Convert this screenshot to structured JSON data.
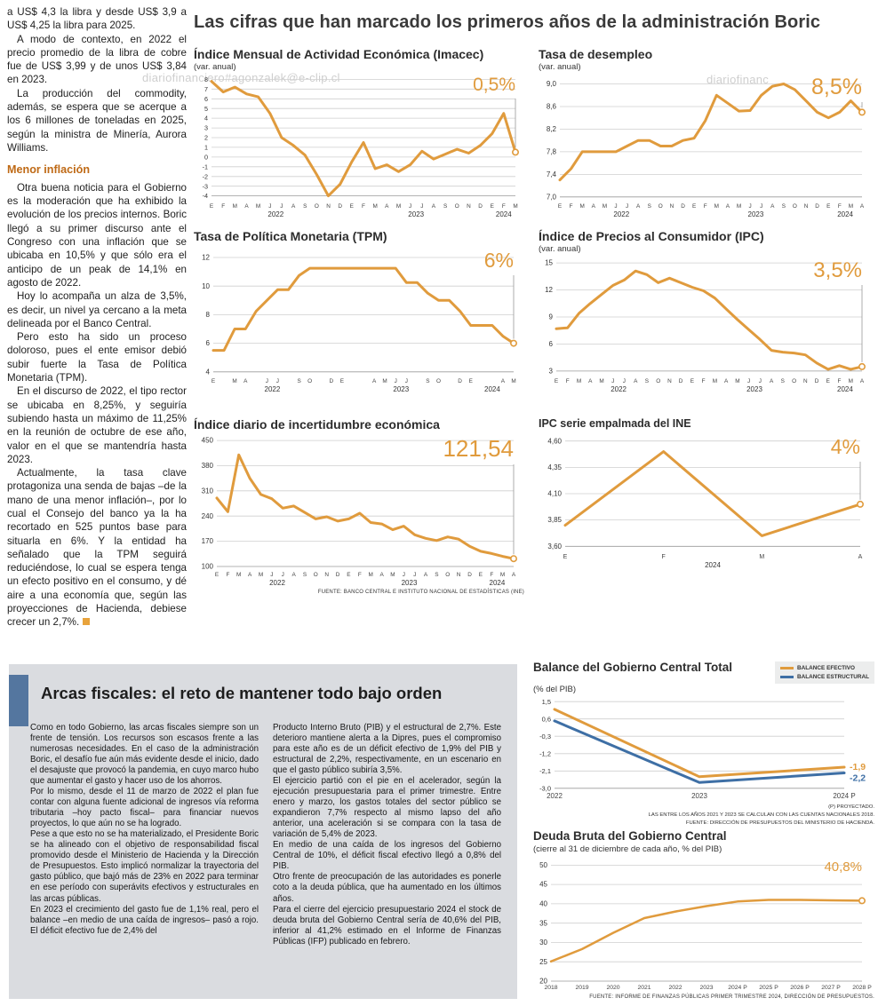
{
  "colors": {
    "accent_orange": "#e09b3d",
    "accent_blue": "#3e6fa5",
    "headline_gray": "#3a3a3a",
    "subhead_orange": "#bf6a16",
    "box_gray": "#dadce0",
    "bar_blue": "#54769f"
  },
  "watermark": {
    "full": "diariofinanciero#agonzalek@e-clip.cl",
    "partial": "diariofinanc"
  },
  "main": {
    "headline": "Las cifras que han marcado los primeros años de la administración Boric"
  },
  "left_article": {
    "blocks": [
      {
        "type": "p",
        "first": true,
        "text": "a US$ 4,3 la libra y desde US$ 3,9 a US$ 4,25 la libra para 2025."
      },
      {
        "type": "p",
        "text": "A modo de contexto, en 2022 el precio promedio de la libra de cobre fue de US$ 3,99 y de unos US$ 3,84 en 2023."
      },
      {
        "type": "p",
        "text": "La producción del commodity, además, se espera que se acerque a los 6 millones de toneladas en 2025, según la ministra de Minería, Aurora Williams."
      },
      {
        "type": "h",
        "text": "Menor inflación"
      },
      {
        "type": "p",
        "text": "Otra buena noticia para el Gobierno es la moderación que ha exhibido la evolución de los precios internos. Boric llegó a su primer discurso ante el Congreso con una inflación que se ubicaba en 10,5% y que sólo era el anticipo de un peak de 14,1% en agosto de 2022."
      },
      {
        "type": "p",
        "text": "Hoy lo acompaña un alza de 3,5%, es decir, un nivel ya cercano a la meta delineada por el Banco Central."
      },
      {
        "type": "p",
        "text": "Pero esto ha sido un proceso doloroso, pues el ente emisor debió subir fuerte la Tasa de Política Monetaria (TPM)."
      },
      {
        "type": "p",
        "text": "En el discurso de 2022, el tipo rector se ubicaba en 8,25%, y seguiría subiendo hasta un máximo de 11,25% en la reunión de octubre de ese año, valor en el que se mantendría hasta 2023."
      },
      {
        "type": "p",
        "endmark": true,
        "text": "Actualmente, la tasa clave protagoniza una senda de bajas –de la mano de una menor inflación–, por lo cual el Consejo del banco ya la ha recortado en 525 puntos base para situarla en 6%. Y la entidad ha señalado que la TPM seguirá reduciéndose, lo cual se espera tenga un efecto positivo en el consumo, y dé aire a una economía que, según las proyecciones de Hacienda, debiese crecer un 2,7%."
      }
    ]
  },
  "fiscal": {
    "headline": "Arcas fiscales: el reto de mantener todo bajo orden",
    "col1": [
      "Como en todo Gobierno, las arcas fiscales siempre son un frente de tensión. Los recursos son escasos frente a las numerosas necesidades. En el caso de la administración Boric, el desafío fue aún más evidente desde el inicio, dado el desajuste que provocó la pandemia, en cuyo marco hubo que aumentar el gasto y hacer uso de los ahorros.",
      "Por lo mismo, desde el 11 de marzo de 2022 el plan fue contar con alguna fuente adicional de ingresos vía reforma tributaria –hoy pacto fiscal– para financiar nuevos proyectos, lo que aún no se ha logrado.",
      "Pese a que esto no se ha materializado, el Presidente Boric se ha alineado con el objetivo de responsabilidad fiscal promovido desde el Ministerio de Hacienda y la Dirección de Presupuestos. Esto implicó normalizar la trayectoria del gasto público, que bajó más de 23% en 2022 para terminar en ese período con superávits efectivos y estructurales en las arcas públicas.",
      "En 2023 el crecimiento del gasto fue de 1,1% real, pero el balance –en medio de una caída de ingresos– pasó a rojo. El déficit efectivo fue de 2,4% del"
    ],
    "col2": [
      "Producto Interno Bruto (PIB) y el estructural de 2,7%. Este deterioro mantiene alerta a la Dipres, pues el compromiso para este año es de un déficit efectivo de 1,9% del PIB y estructural de 2,2%, respectivamente, en un escenario en que el gasto público subiría 3,5%.",
      "El ejercicio partió con el pie en el acelerador, según la ejecución presupuestaria para el primer trimestre. Entre enero y marzo, los gastos totales del sector público se expandieron 7,7% respecto al mismo lapso del año anterior, una aceleración si se compara con la tasa de variación de 5,4% de 2023.",
      "En medio de una caída de los ingresos del Gobierno Central de 10%, el déficit fiscal efectivo llegó a 0,8% del PIB.",
      "Otro frente de preocupación de las autoridades es ponerle coto a la deuda pública, que ha aumentado en los últimos años.",
      "Para el cierre del ejercicio presupuestario 2024 el stock de deuda bruta del Gobierno Central sería de 40,6% del PIB, inferior al 41,2% estimado en el Informe de Finanzas Públicas (IFP) publicado en febrero."
    ]
  },
  "chart_data": [
    {
      "id": "imacec",
      "type": "line",
      "title": "Índice Mensual de Actividad Económica (Imacec)",
      "subtitle": "(var. anual)",
      "callout": "0,5%",
      "callout_size": 21,
      "color": "#e09b3d",
      "lw": 3,
      "leader": true,
      "ylim": [
        -4.4,
        8.4
      ],
      "yticks": [
        8,
        7,
        6,
        5,
        4,
        3,
        2,
        1,
        0,
        -1,
        -2,
        -3,
        -4
      ],
      "ytick_labels": [
        "8",
        "7",
        "6",
        "5",
        "4",
        "3",
        "2",
        "1",
        "0",
        "-1",
        "-2",
        "-3",
        "-4"
      ],
      "ml": 20,
      "mr": 10,
      "mt": 4,
      "mb": 22,
      "yfont": 7.2,
      "x": [
        "E",
        "F",
        "M",
        "A",
        "M",
        "J",
        "J",
        "A",
        "S",
        "O",
        "N",
        "D",
        "E",
        "F",
        "M",
        "A",
        "M",
        "J",
        "J",
        "A",
        "S",
        "O",
        "N",
        "D",
        "E",
        "F",
        "M"
      ],
      "years": [
        {
          "label": "2022",
          "from": 0,
          "to": 11
        },
        {
          "label": "2023",
          "from": 12,
          "to": 23
        },
        {
          "label": "2024",
          "from": 24,
          "to": 26
        }
      ],
      "values": [
        7.8,
        6.7,
        7.2,
        6.5,
        6.2,
        4.5,
        2.0,
        1.2,
        0.2,
        -1.8,
        -4.0,
        -2.8,
        -0.5,
        1.5,
        -1.2,
        -0.8,
        -1.5,
        -0.8,
        0.6,
        -0.2,
        0.3,
        0.8,
        0.4,
        1.2,
        2.4,
        4.5,
        0.5
      ]
    },
    {
      "id": "desempleo",
      "type": "line",
      "title": "Tasa de desempleo",
      "subtitle": "(var. anual)",
      "callout": "8,5%",
      "callout_size": 25,
      "color": "#e09b3d",
      "lw": 3,
      "leader": true,
      "ylim": [
        6.95,
        9.15
      ],
      "yticks": [
        9.0,
        8.6,
        8.2,
        7.8,
        7.4,
        7.0
      ],
      "ytick_labels": [
        "9,0",
        "8,6",
        "8,2",
        "7,8",
        "7,4",
        "7,0"
      ],
      "ml": 24,
      "mr": 12,
      "mt": 4,
      "mb": 22,
      "yfont": 8,
      "x": [
        "E",
        "F",
        "M",
        "A",
        "M",
        "J",
        "J",
        "A",
        "S",
        "O",
        "N",
        "D",
        "E",
        "F",
        "M",
        "A",
        "M",
        "J",
        "J",
        "A",
        "S",
        "O",
        "N",
        "D",
        "E",
        "F",
        "M",
        "A"
      ],
      "years": [
        {
          "label": "2022",
          "from": 0,
          "to": 11
        },
        {
          "label": "2023",
          "from": 12,
          "to": 23
        },
        {
          "label": "2024",
          "from": 24,
          "to": 27
        }
      ],
      "values": [
        7.3,
        7.5,
        7.8,
        7.8,
        7.8,
        7.8,
        7.9,
        8.0,
        8.0,
        7.9,
        7.9,
        8.0,
        8.04,
        8.35,
        8.8,
        8.66,
        8.52,
        8.53,
        8.8,
        8.96,
        9.0,
        8.9,
        8.7,
        8.5,
        8.4,
        8.5,
        8.7,
        8.5
      ]
    },
    {
      "id": "tpm",
      "type": "line",
      "title": "Tasa de Política Monetaria (TPM)",
      "callout": "6%",
      "callout_size": 23,
      "color": "#e09b3d",
      "lw": 3,
      "leader": true,
      "ylim": [
        3.8,
        12.5
      ],
      "yticks": [
        12,
        10,
        8,
        6,
        4
      ],
      "ytick_labels": [
        "12",
        "10",
        "8",
        "6",
        "4"
      ],
      "ml": 22,
      "mr": 12,
      "mt": 8,
      "mb": 22,
      "yfont": 8,
      "x": [
        "E",
        "",
        "M",
        "A",
        "",
        "J",
        "J",
        "",
        "S",
        "O",
        "",
        "D",
        "E",
        "",
        "",
        "A",
        "M",
        "J",
        "J",
        "",
        "S",
        "O",
        "",
        "D",
        "E",
        "",
        "",
        "A",
        "M"
      ],
      "years": [
        {
          "label": "2022",
          "from": 0,
          "to": 11
        },
        {
          "label": "2023",
          "from": 12,
          "to": 23
        },
        {
          "label": "2024",
          "from": 24,
          "to": 28
        }
      ],
      "values": [
        5.5,
        5.5,
        7.0,
        7.0,
        8.25,
        9.0,
        9.75,
        9.75,
        10.75,
        11.25,
        11.25,
        11.25,
        11.25,
        11.25,
        11.25,
        11.25,
        11.25,
        11.25,
        10.25,
        10.25,
        9.5,
        9.0,
        9.0,
        8.25,
        7.25,
        7.25,
        7.25,
        6.5,
        6.0
      ]
    },
    {
      "id": "ipc",
      "type": "line",
      "title": "Índice de Precios al Consumidor (IPC)",
      "subtitle": "(var. anual)",
      "callout": "3,5%",
      "callout_size": 24,
      "color": "#e09b3d",
      "lw": 3,
      "leader": true,
      "ylim": [
        2.6,
        15.4
      ],
      "yticks": [
        15,
        12,
        9,
        6,
        3
      ],
      "ytick_labels": [
        "15",
        "12",
        "9",
        "6",
        "3"
      ],
      "ml": 20,
      "mr": 12,
      "mt": 6,
      "mb": 22,
      "yfont": 8,
      "x": [
        "E",
        "F",
        "M",
        "A",
        "M",
        "J",
        "J",
        "A",
        "S",
        "O",
        "N",
        "D",
        "E",
        "F",
        "M",
        "A",
        "M",
        "J",
        "J",
        "A",
        "S",
        "O",
        "N",
        "D",
        "E",
        "F",
        "M",
        "A"
      ],
      "years": [
        {
          "label": "2022",
          "from": 0,
          "to": 11
        },
        {
          "label": "2023",
          "from": 12,
          "to": 23
        },
        {
          "label": "2024",
          "from": 24,
          "to": 27
        }
      ],
      "values": [
        7.7,
        7.8,
        9.4,
        10.5,
        11.5,
        12.5,
        13.1,
        14.1,
        13.7,
        12.8,
        13.3,
        12.8,
        12.3,
        11.9,
        11.1,
        9.9,
        8.7,
        7.6,
        6.5,
        5.3,
        5.1,
        5.0,
        4.8,
        3.9,
        3.2,
        3.6,
        3.2,
        3.5
      ]
    },
    {
      "id": "incert",
      "type": "line",
      "title": "Índice diario de incertidumbre económica",
      "callout": "121,54",
      "callout_size": 26,
      "color": "#e09b3d",
      "lw": 3,
      "leader": true,
      "fuente": "FUENTE: BANCO CENTRAL E INSTITUTO NACIONAL DE ESTADÍSTICAS (INE)",
      "ylim": [
        95,
        460
      ],
      "yticks": [
        450,
        380,
        310,
        240,
        170,
        100
      ],
      "ytick_labels": [
        "450",
        "380",
        "310",
        "240",
        "170",
        "100"
      ],
      "ml": 26,
      "mr": 12,
      "mt": 6,
      "mb": 22,
      "yfont": 8,
      "x": [
        "E",
        "F",
        "M",
        "A",
        "M",
        "J",
        "J",
        "A",
        "S",
        "O",
        "N",
        "D",
        "E",
        "F",
        "M",
        "A",
        "M",
        "J",
        "J",
        "A",
        "S",
        "O",
        "N",
        "D",
        "E",
        "F",
        "M",
        "A"
      ],
      "years": [
        {
          "label": "2022",
          "from": 0,
          "to": 11
        },
        {
          "label": "2023",
          "from": 12,
          "to": 23
        },
        {
          "label": "2024",
          "from": 24,
          "to": 27
        }
      ],
      "values": [
        290,
        252,
        410,
        345,
        300,
        288,
        262,
        268,
        250,
        232,
        238,
        226,
        232,
        248,
        222,
        218,
        202,
        212,
        188,
        178,
        172,
        182,
        176,
        156,
        142,
        136,
        128,
        121.54
      ]
    },
    {
      "id": "ine",
      "type": "line",
      "title": "IPC serie empalmada del INE",
      "callout": "4%",
      "callout_size": 23,
      "color": "#e09b3d",
      "lw": 3,
      "leader": true,
      "ylim": [
        3.56,
        4.64
      ],
      "yticks": [
        4.6,
        4.35,
        4.1,
        3.85,
        3.6
      ],
      "ytick_labels": [
        "4,60",
        "4,35",
        "4,10",
        "3,85",
        "3,60"
      ],
      "ml": 30,
      "mr": 14,
      "mt": 8,
      "mb": 22,
      "yfont": 8,
      "xfont": 7,
      "x": [
        "E",
        "F",
        "M",
        "A"
      ],
      "years": [
        {
          "label": "2024",
          "from": 0,
          "to": 3
        }
      ],
      "values": [
        3.8,
        4.5,
        3.7,
        4.0
      ]
    },
    {
      "id": "balance",
      "type": "line",
      "title": "Balance del Gobierno Central Total",
      "subtitle": "(% del PIB)",
      "note_projected": "(P) PROYECTADO.",
      "note_calc": "LAS ENTRE LOS AÑOS 2021 Y 2023 SE CALCULAN  CON LAS CUENTAS NACIONALES 2018.",
      "note_source": "FUENTE: DIRECCIÓN DE PRESUPUESTOS DEL MINISTERIO DE HACIENDA.",
      "marker": false,
      "lw": 3,
      "ylim": [
        -3.1,
        1.6
      ],
      "yticks": [
        1.5,
        0.6,
        -0.3,
        -1.2,
        -2.1,
        -3.0
      ],
      "ytick_labels": [
        "1,5",
        "0,6",
        "-0,3",
        "-1,2",
        "-2,1",
        "-3,0"
      ],
      "ml": 24,
      "mr": 34,
      "mt": 6,
      "mb": 13,
      "yfont": 7.5,
      "xfont": 8,
      "x": [
        "2022",
        "2023",
        "2024 P"
      ],
      "series": [
        {
          "name": "BALANCE EFECTIVO",
          "color": "#e09b3d",
          "values": [
            1.1,
            -2.4,
            -1.9
          ],
          "end_label": "-1,9",
          "end_dy": 0
        },
        {
          "name": "BALANCE ESTRUCTURAL",
          "color": "#3e6fa5",
          "values": [
            0.5,
            -2.7,
            -2.2
          ],
          "end_label": "-2,2",
          "end_dy": 6
        }
      ]
    },
    {
      "id": "deuda",
      "type": "line",
      "title": "Deuda Bruta del Gobierno Central",
      "subtitle": "(cierre al 31 de diciembre de cada año, % del PIB)",
      "callout": "40,8%",
      "callout_size": 15,
      "color": "#e09b3d",
      "lw": 2.5,
      "leader": false,
      "fuente": "FUENTE: INFORME DE FINANZAS PÚBLICAS PRIMER TRIMESTRE 2024, DIRECCIÓN DE PRESUPUESTOS.",
      "ylim": [
        20,
        51
      ],
      "yticks": [
        50,
        45,
        40,
        35,
        30,
        25,
        20
      ],
      "ytick_labels": [
        "50",
        "45",
        "40",
        "35",
        "30",
        "25",
        "20"
      ],
      "ml": 20,
      "mr": 14,
      "mt": 8,
      "mb": 13,
      "yfont": 8,
      "xfont": 6.8,
      "x": [
        "2018",
        "2019",
        "2020",
        "2021",
        "2022",
        "2023",
        "2024 P",
        "2025 P",
        "2026 P",
        "2027 P",
        "2028 P"
      ],
      "values": [
        25.1,
        28.3,
        32.5,
        36.3,
        38.0,
        39.4,
        40.6,
        41.0,
        41.0,
        40.9,
        40.8
      ]
    }
  ]
}
